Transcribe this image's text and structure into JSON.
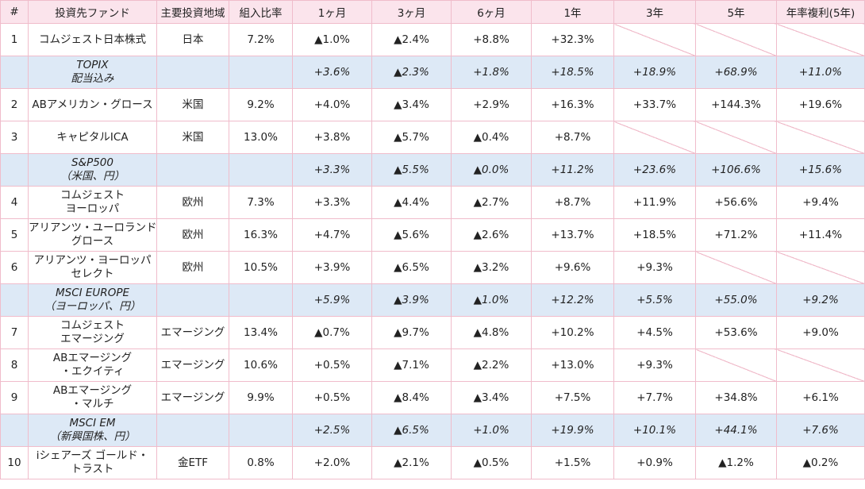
{
  "headers": [
    "#",
    "投資先ファンド",
    "主要投資地域",
    "組入比率",
    "1ヶ月",
    "3ヶ月",
    "6ヶ月",
    "1年",
    "3年",
    "5年",
    "年率複利(5年)"
  ],
  "rows": [
    {
      "type": "fund",
      "no": "1",
      "name": [
        "コムジェスト日本株式"
      ],
      "region": "日本",
      "weight": "7.2%",
      "m1": "▲1.0%",
      "m3": "▲2.4%",
      "m6": "+8.8%",
      "y1": "+32.3%",
      "y3": "",
      "y5": "",
      "cagr": ""
    },
    {
      "type": "bench",
      "name": [
        "TOPIX",
        "配当込み"
      ],
      "m1": "+3.6%",
      "m3": "▲2.3%",
      "m6": "+1.8%",
      "y1": "+18.5%",
      "y3": "+18.9%",
      "y5": "+68.9%",
      "cagr": "+11.0%"
    },
    {
      "type": "fund",
      "no": "2",
      "name": [
        "ABアメリカン・グロース"
      ],
      "region": "米国",
      "weight": "9.2%",
      "m1": "+4.0%",
      "m3": "▲3.4%",
      "m6": "+2.9%",
      "y1": "+16.3%",
      "y3": "+33.7%",
      "y5": "+144.3%",
      "cagr": "+19.6%"
    },
    {
      "type": "fund",
      "no": "3",
      "name": [
        "キャピタルICA"
      ],
      "region": "米国",
      "weight": "13.0%",
      "m1": "+3.8%",
      "m3": "▲5.7%",
      "m6": "▲0.4%",
      "y1": "+8.7%",
      "y3": "",
      "y5": "",
      "cagr": ""
    },
    {
      "type": "bench",
      "name": [
        "S&P500",
        "（米国、円）"
      ],
      "m1": "+3.3%",
      "m3": "▲5.5%",
      "m6": "▲0.0%",
      "y1": "+11.2%",
      "y3": "+23.6%",
      "y5": "+106.6%",
      "cagr": "+15.6%"
    },
    {
      "type": "fund",
      "no": "4",
      "name": [
        "コムジェスト",
        "ヨーロッパ"
      ],
      "region": "欧州",
      "weight": "7.3%",
      "m1": "+3.3%",
      "m3": "▲4.4%",
      "m6": "▲2.7%",
      "y1": "+8.7%",
      "y3": "+11.9%",
      "y5": "+56.6%",
      "cagr": "+9.4%"
    },
    {
      "type": "fund",
      "no": "5",
      "name": [
        "アリアンツ・ユーロランド",
        "グロース"
      ],
      "region": "欧州",
      "weight": "16.3%",
      "m1": "+4.7%",
      "m3": "▲5.6%",
      "m6": "▲2.6%",
      "y1": "+13.7%",
      "y3": "+18.5%",
      "y5": "+71.2%",
      "cagr": "+11.4%"
    },
    {
      "type": "fund",
      "no": "6",
      "name": [
        "アリアンツ・ヨーロッパ",
        "セレクト"
      ],
      "region": "欧州",
      "weight": "10.5%",
      "m1": "+3.9%",
      "m3": "▲6.5%",
      "m6": "▲3.2%",
      "y1": "+9.6%",
      "y3": "+9.3%",
      "y5": "",
      "cagr": ""
    },
    {
      "type": "bench",
      "name": [
        "MSCI  EUROPE",
        "（ヨーロッパ、円）"
      ],
      "m1": "+5.9%",
      "m3": "▲3.9%",
      "m6": "▲1.0%",
      "y1": "+12.2%",
      "y3": "+5.5%",
      "y5": "+55.0%",
      "cagr": "+9.2%"
    },
    {
      "type": "fund",
      "no": "7",
      "name": [
        "コムジェスト",
        "エマージング"
      ],
      "region": "エマージング",
      "weight": "13.4%",
      "m1": "▲0.7%",
      "m3": "▲9.7%",
      "m6": "▲4.8%",
      "y1": "+10.2%",
      "y3": "+4.5%",
      "y5": "+53.6%",
      "cagr": "+9.0%"
    },
    {
      "type": "fund",
      "no": "8",
      "name": [
        "ABエマージング",
        "・エクイティ"
      ],
      "region": "エマージング",
      "weight": "10.6%",
      "m1": "+0.5%",
      "m3": "▲7.1%",
      "m6": "▲2.2%",
      "y1": "+13.0%",
      "y3": "+9.3%",
      "y5": "",
      "cagr": ""
    },
    {
      "type": "fund",
      "no": "9",
      "name": [
        "ABエマージング",
        "・マルチ"
      ],
      "region": "エマージング",
      "weight": "9.9%",
      "m1": "+0.5%",
      "m3": "▲8.4%",
      "m6": "▲3.4%",
      "y1": "+7.5%",
      "y3": "+7.7%",
      "y5": "+34.8%",
      "cagr": "+6.1%"
    },
    {
      "type": "bench",
      "name": [
        "MSCI EM",
        "（新興国株、円）"
      ],
      "m1": "+2.5%",
      "m3": "▲6.5%",
      "m6": "+1.0%",
      "y1": "+19.9%",
      "y3": "+10.1%",
      "y5": "+44.1%",
      "cagr": "+7.6%"
    },
    {
      "type": "fund",
      "no": "10",
      "name": [
        "iシェアーズ ゴールド・",
        "トラスト"
      ],
      "region": "金ETF",
      "weight": "0.8%",
      "m1": "+2.0%",
      "m3": "▲2.1%",
      "m6": "▲0.5%",
      "y1": "+1.5%",
      "y3": "+0.9%",
      "y5": "▲1.2%",
      "cagr": "▲0.2%"
    }
  ],
  "colors": {
    "header_bg": "#fbe4ec",
    "border": "#f0bccb",
    "benchmark_bg": "#dde9f6"
  }
}
